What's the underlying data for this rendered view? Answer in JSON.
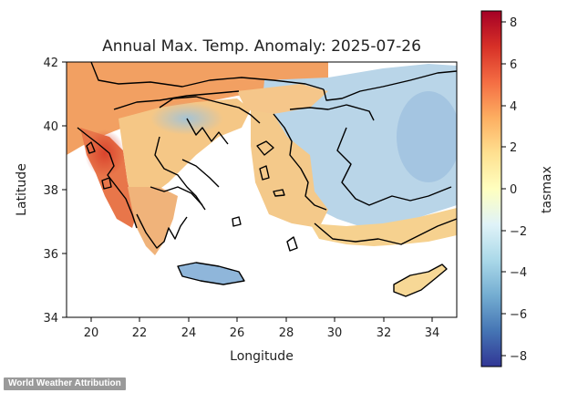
{
  "title": "Annual Max. Temp. Anomaly: 2025-07-26",
  "credit": "World Weather Attribution",
  "map": {
    "xlabel": "Longitude",
    "ylabel": "Latitude",
    "xlim": [
      19,
      35
    ],
    "ylim": [
      34,
      42
    ],
    "xticks": [
      "20",
      "22",
      "24",
      "26",
      "28",
      "30",
      "32",
      "34"
    ],
    "yticks": [
      "34",
      "36",
      "38",
      "40",
      "42"
    ],
    "variable": "tasmax",
    "colormap": "RdYlBu_r",
    "colorbar_range": [
      -8.5,
      8.5
    ],
    "colorbar_ticks": [
      "8",
      "6",
      "4",
      "2",
      "0",
      "−2",
      "−4",
      "−6",
      "−8"
    ],
    "colors": {
      "hot": "#c0392b",
      "warm": "#f29a58",
      "neutral": "#fbe7a8",
      "cool": "#a6c8e0",
      "cold": "#3b6bb0",
      "coast": "#000000",
      "land_masked": "#ffffff"
    }
  }
}
